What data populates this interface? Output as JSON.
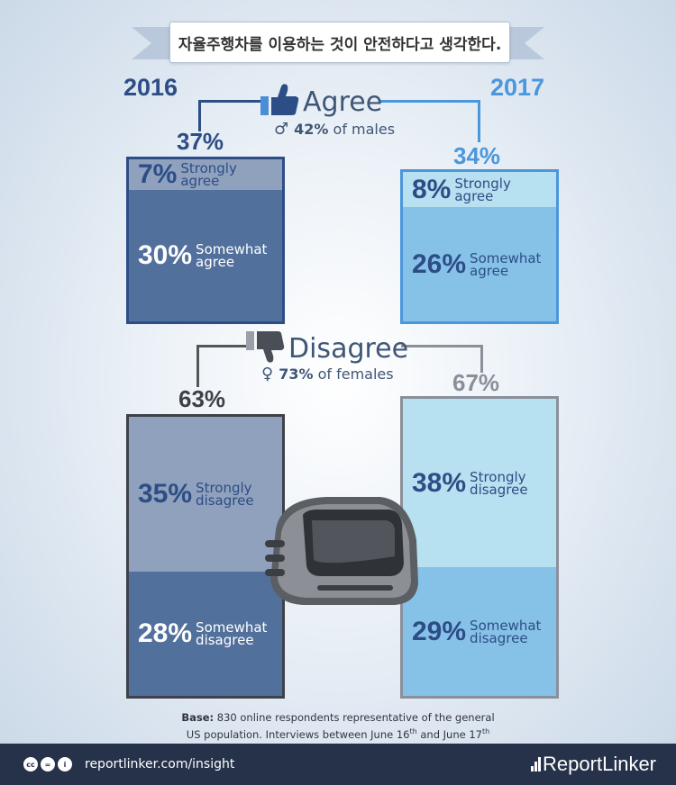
{
  "title": "자율주행차를 이용하는 것이 안전하다고 생각한다.",
  "years": {
    "left": "2016",
    "right": "2017"
  },
  "agree": {
    "heading": "Agree",
    "note_value": "42%",
    "note_text": "of males",
    "total_2016": "37%",
    "total_2017": "34%"
  },
  "disagree": {
    "heading": "Disagree",
    "note_value": "73%",
    "note_text": "of females",
    "total_2016": "63%",
    "total_2017": "67%"
  },
  "chart_data": {
    "type": "bar",
    "categories": [
      "2016",
      "2017"
    ],
    "series": [
      {
        "name": "Strongly agree",
        "values": [
          7,
          8
        ]
      },
      {
        "name": "Somewhat agree",
        "values": [
          30,
          26
        ]
      },
      {
        "name": "Strongly disagree",
        "values": [
          35,
          38
        ]
      },
      {
        "name": "Somewhat disagree",
        "values": [
          28,
          29
        ]
      }
    ],
    "segment_labels": {
      "strongly_agree": [
        "Strongly",
        "agree"
      ],
      "somewhat_agree": [
        "Somewhat",
        "agree"
      ],
      "strongly_disagree": [
        "Strongly",
        "disagree"
      ],
      "somewhat_disagree": [
        "Somewhat",
        "disagree"
      ]
    },
    "value_labels": {
      "a16s": "7%",
      "a16w": "30%",
      "a17s": "8%",
      "a17w": "26%",
      "d16s": "35%",
      "d16w": "28%",
      "d17s": "38%",
      "d17w": "29%"
    }
  },
  "base_note": {
    "label": "Base:",
    "line1": "830 online respondents representative of the general",
    "line2_a": "US population. Interviews between June 16",
    "sup1": "th",
    "line2_b": " and June 17",
    "sup2": "th"
  },
  "footer": {
    "license_icons": [
      "cc",
      "=",
      "i"
    ],
    "link": "reportlinker.com/insight",
    "brand": "ReportLinker"
  },
  "colors": {
    "dark_blue": "#2d4d86",
    "mid_blue": "#52709c",
    "light_blue": "#4a97dc",
    "sky_blue": "#86c2e8",
    "pale_sky": "#b7e0f0"
  }
}
